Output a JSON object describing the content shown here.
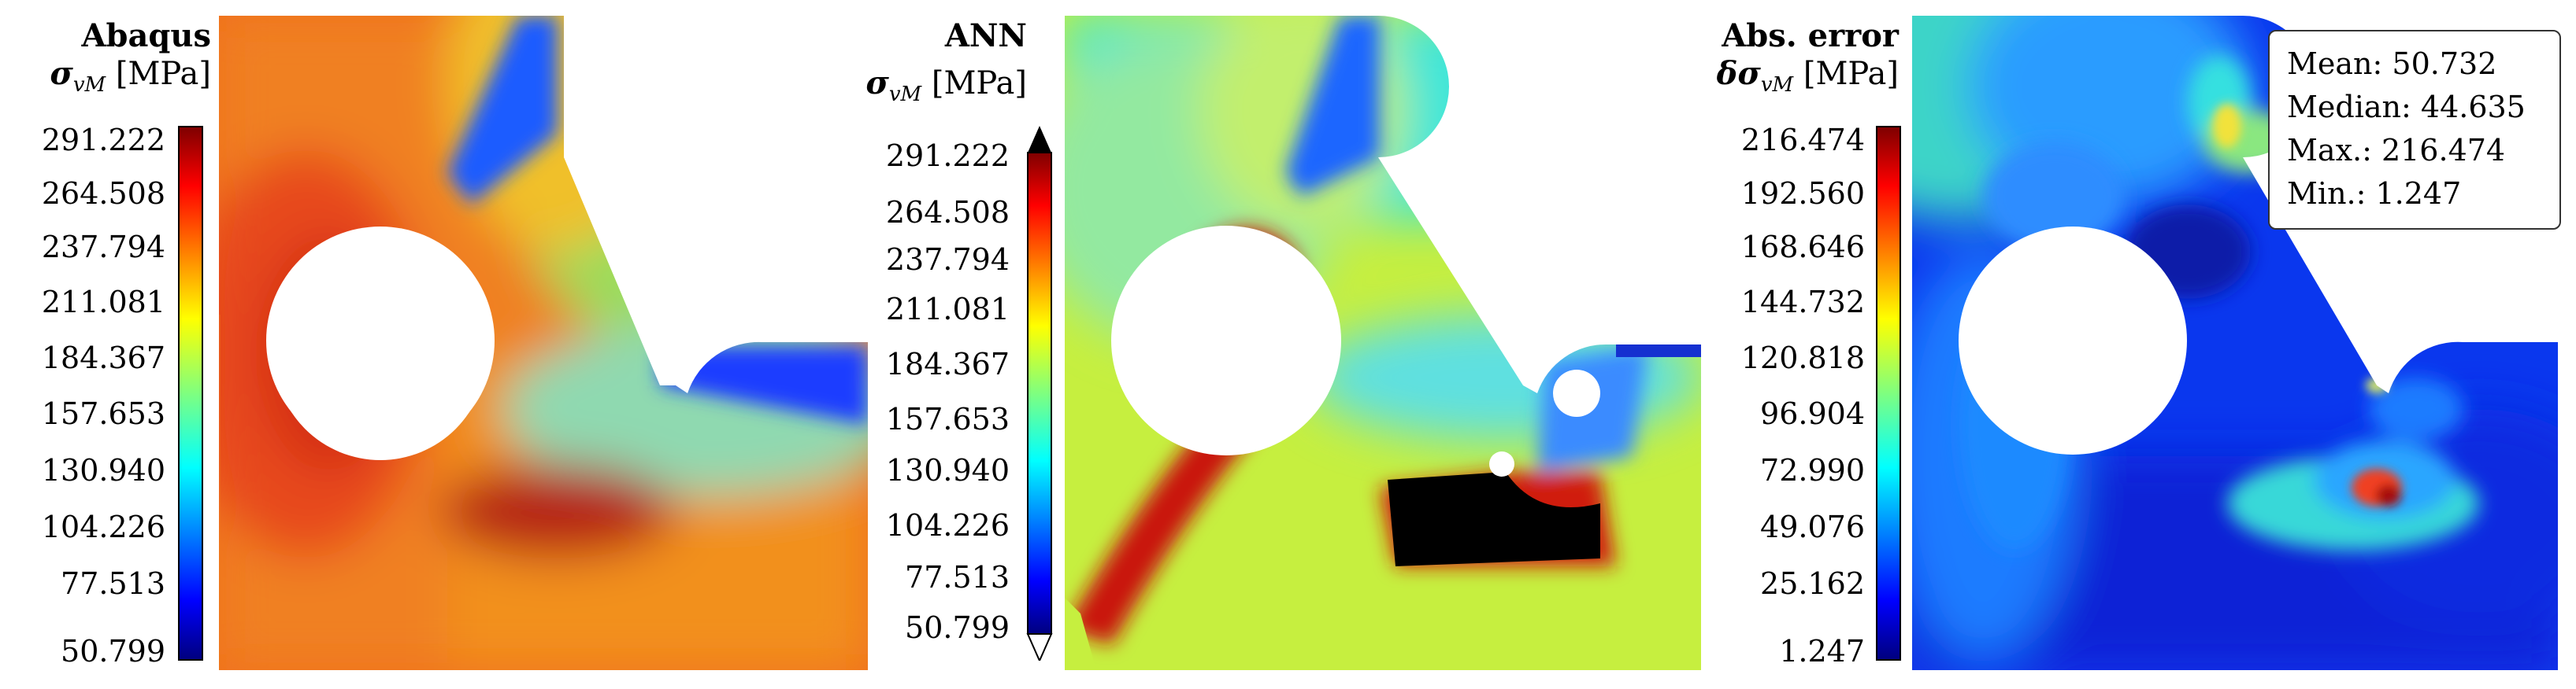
{
  "panels": [
    {
      "title": "Abaqus",
      "quantity_symbol": "σ",
      "quantity_subscript": "vM",
      "unit": "[MPa]",
      "ticks": [
        "291.222",
        "264.508",
        "237.794",
        "211.081",
        "184.367",
        "157.653",
        "130.940",
        "104.226",
        "77.513",
        "50.799"
      ],
      "colorbar_arrows": false
    },
    {
      "title": "ANN",
      "quantity_symbol": "σ",
      "quantity_subscript": "vM",
      "unit": "[MPa]",
      "ticks": [
        "291.222",
        "264.508",
        "237.794",
        "211.081",
        "184.367",
        "157.653",
        "130.940",
        "104.226",
        "77.513",
        "50.799"
      ],
      "colorbar_arrows": true
    },
    {
      "title": "Abs. error",
      "quantity_symbol": "δσ",
      "quantity_subscript": "vM",
      "unit": "[MPa]",
      "ticks": [
        "216.474",
        "192.560",
        "168.646",
        "144.732",
        "120.818",
        "96.904",
        "72.990",
        "49.076",
        "25.162",
        "1.247"
      ],
      "colorbar_arrows": false
    }
  ],
  "stats": {
    "mean": "Mean: 50.732",
    "median": "Median: 44.635",
    "max": "Max.: 216.474",
    "min": "Min.: 1.247"
  },
  "colormap": [
    "#00007f",
    "#0000ff",
    "#007fff",
    "#00ffff",
    "#7fff7f",
    "#ffff00",
    "#ff7f00",
    "#ff0000",
    "#7f0000"
  ]
}
